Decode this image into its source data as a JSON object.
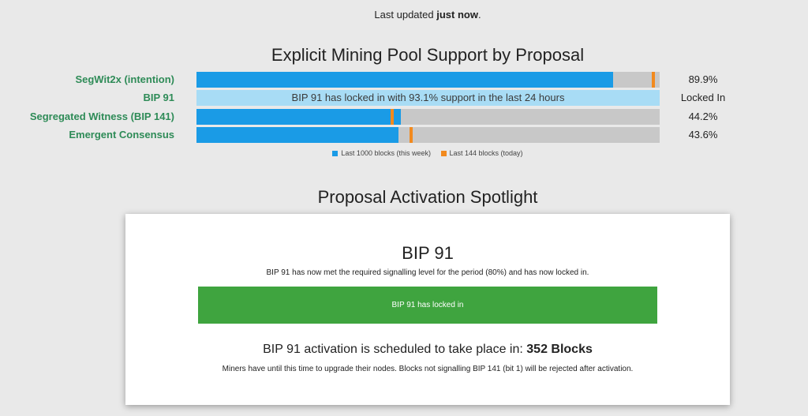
{
  "status": {
    "prefix": "Last updated ",
    "value": "just now",
    "suffix": "."
  },
  "support": {
    "title": "Explicit Mining Pool Support by Proposal",
    "colors": {
      "week": "#1a9be6",
      "today": "#f28a1e",
      "locked": "#a8dcf5",
      "track": "#c8c8c8"
    },
    "rows": [
      {
        "label": "SegWit2x (intention)",
        "value_text": "89.9%",
        "week_pct": 89.9,
        "today_pct": 98.6
      },
      {
        "label": "BIP 91",
        "value_text": "Locked In",
        "locked_text": "BIP 91 has locked in with 93.1% support in the last 24 hours"
      },
      {
        "label": "Segregated Witness (BIP 141)",
        "value_text": "44.2%",
        "week_pct": 44.2,
        "today_pct": 42.2
      },
      {
        "label": "Emergent Consensus",
        "value_text": "43.6%",
        "week_pct": 43.6,
        "today_pct": 46.3
      }
    ],
    "legend": [
      {
        "label": "Last 1000 blocks (this week)",
        "color": "#1a9be6"
      },
      {
        "label": "Last 144 blocks (today)",
        "color": "#f28a1e"
      }
    ]
  },
  "spotlight": {
    "title": "Proposal Activation Spotlight",
    "card": {
      "heading": "BIP 91",
      "description": "BIP 91 has now met the required signalling level for the period (80%) and has now locked in.",
      "status_bar": "BIP 91 has locked in",
      "schedule_prefix": "BIP 91 activation is scheduled to take place in: ",
      "schedule_value": "352 Blocks",
      "note": "Miners have until this time to upgrade their nodes. Blocks not signalling BIP 141 (bit 1) will be rejected after activation."
    }
  }
}
